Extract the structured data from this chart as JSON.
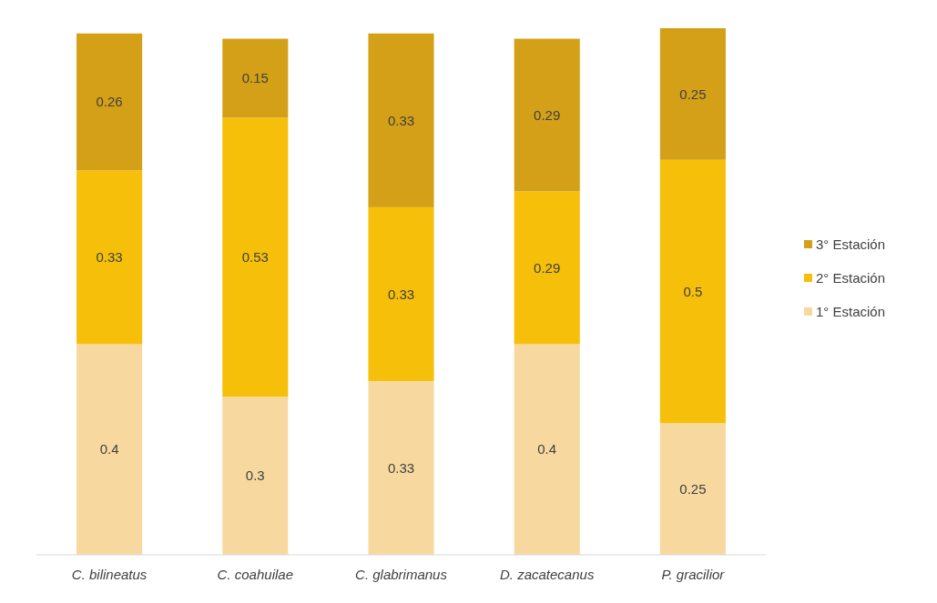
{
  "chart_data": {
    "type": "bar",
    "stacked": true,
    "data_labels": true,
    "legend": "right",
    "categories": [
      "C. bilineatus",
      "C. coahuilae",
      "C. glabrimanus",
      "D. zacatecanus",
      "P. gracilior"
    ],
    "series": [
      {
        "name": "1° Estación",
        "color": "#f7d9a0",
        "values": [
          0.4,
          0.3,
          0.33,
          0.4,
          0.25
        ]
      },
      {
        "name": "2° Estación",
        "color": "#f5bf0a",
        "values": [
          0.33,
          0.53,
          0.33,
          0.29,
          0.5
        ]
      },
      {
        "name": "3° Estación",
        "color": "#d4a017",
        "values": [
          0.26,
          0.15,
          0.33,
          0.29,
          0.25
        ]
      }
    ]
  }
}
